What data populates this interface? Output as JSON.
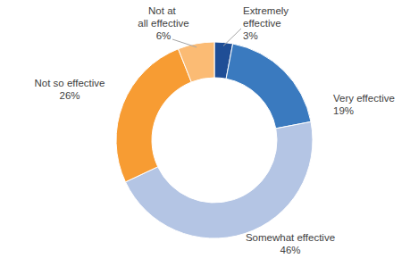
{
  "chart_data": {
    "type": "pie",
    "categories": [
      "Extremely effective",
      "Very effective",
      "Somewhat effective",
      "Not so effective",
      "Not at all effective"
    ],
    "values": [
      3,
      19,
      46,
      26,
      6
    ],
    "value_labels": [
      "3%",
      "19%",
      "46%",
      "26%",
      "6%"
    ],
    "colors": [
      "#1f4e96",
      "#3a7abf",
      "#b4c5e4",
      "#f79c33",
      "#fbbb74"
    ],
    "data_labels": true
  }
}
